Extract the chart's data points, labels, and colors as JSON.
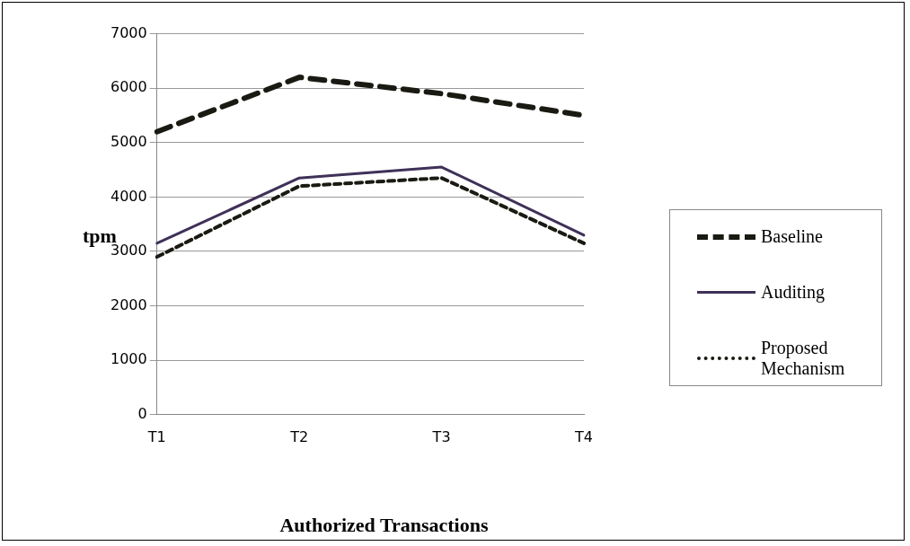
{
  "chart_data": {
    "type": "line",
    "xlabel": "Authorized Transactions",
    "ylabel": "tpm",
    "categories": [
      "T1",
      "T2",
      "T3",
      "T4"
    ],
    "series": [
      {
        "name": "Baseline",
        "color": "#1a1a12",
        "values": [
          5200,
          6200,
          5900,
          5500
        ],
        "line_style": "dashed"
      },
      {
        "name": "Auditing",
        "color": "#3f3158",
        "values": [
          3150,
          4350,
          4550,
          3300
        ],
        "line_style": "solid"
      },
      {
        "name": "Proposed Mechanism",
        "color": "#1a1a12",
        "values": [
          2900,
          4200,
          4350,
          3150
        ],
        "line_style": "dotted"
      }
    ],
    "ylim": [
      0,
      7000
    ],
    "yticks": [
      0,
      1000,
      2000,
      3000,
      4000,
      5000,
      6000,
      7000
    ],
    "grid": "y",
    "legend": "right",
    "marker": "none"
  }
}
